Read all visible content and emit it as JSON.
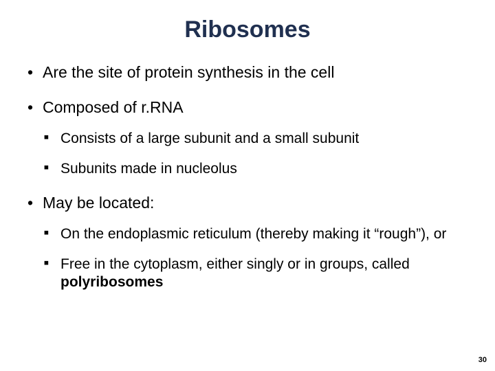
{
  "title": {
    "text": "Ribosomes",
    "color": "#203050",
    "fontsize": 34
  },
  "body": {
    "fontsize_l1": 23,
    "fontsize_l2": 21,
    "line_height": 1.25
  },
  "bullets": [
    {
      "text": "Are the site of protein synthesis in the cell",
      "children": []
    },
    {
      "text": "Composed of r.RNA",
      "children": [
        {
          "text": "Consists of a large subunit and a small subunit"
        },
        {
          "text": "Subunits made in nucleolus"
        }
      ]
    },
    {
      "text": "May be located:",
      "children": [
        {
          "text": "On the endoplasmic reticulum (thereby making it “rough”), or"
        },
        {
          "prefix": "Free in the cytoplasm, either singly or in groups, called ",
          "bold": "polyribosomes"
        }
      ]
    }
  ],
  "page_number": "30",
  "background_color": "#ffffff"
}
